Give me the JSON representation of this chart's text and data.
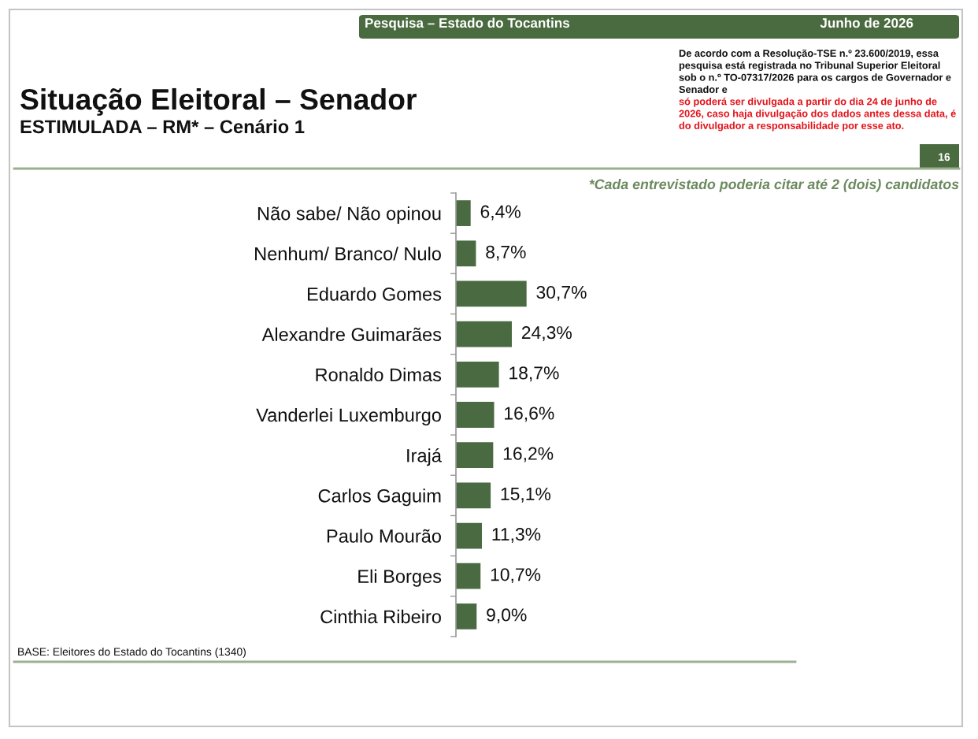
{
  "chart_data": {
    "type": "bar",
    "orientation": "horizontal",
    "title": "Situação Eleitoral – Senador",
    "subtitle": "ESTIMULADA – RM* – Cenário 1",
    "categories": [
      "Não sabe/ Não opinou",
      "Nenhum/ Branco/ Nulo",
      "Eduardo Gomes",
      "Alexandre Guimarães",
      "Ronaldo Dimas",
      "Vanderlei Luxemburgo",
      "Irajá",
      "Carlos Gaguim",
      "Paulo Mourão",
      "Eli Borges",
      "Cinthia Ribeiro"
    ],
    "values": [
      6.4,
      8.7,
      30.7,
      24.3,
      18.7,
      16.6,
      16.2,
      15.1,
      11.3,
      10.7,
      9.0
    ],
    "value_labels": [
      "6,4%",
      "8,7%",
      "30,7%",
      "24,3%",
      "18,7%",
      "16,6%",
      "16,2%",
      "15,1%",
      "11,3%",
      "10,7%",
      "9,0%"
    ],
    "color": "#4a6b42",
    "tick_labels": "y",
    "annotations": [
      "Pesquisa – Estado do Tocantins",
      "Junho de 2026",
      "De acordo com a Resolução-TSE n.º 23.600/2019, essa pesquisa está registrada no Tribunal Superior Eleitoral sob o n.º TO-07317/2026 para os cargos de Governador e Senador e",
      "só poderá ser divulgada a partir do dia 24 de junho de 2026, caso haja divulgação dos dados antes dessa data, é do divulgador a responsabilidade por esse ato.",
      "16",
      "*Cada entrevistado poderia citar até 2 (dois) candidatos",
      "BASE: Eleitores do Estado do Tocantins (1340)"
    ]
  }
}
